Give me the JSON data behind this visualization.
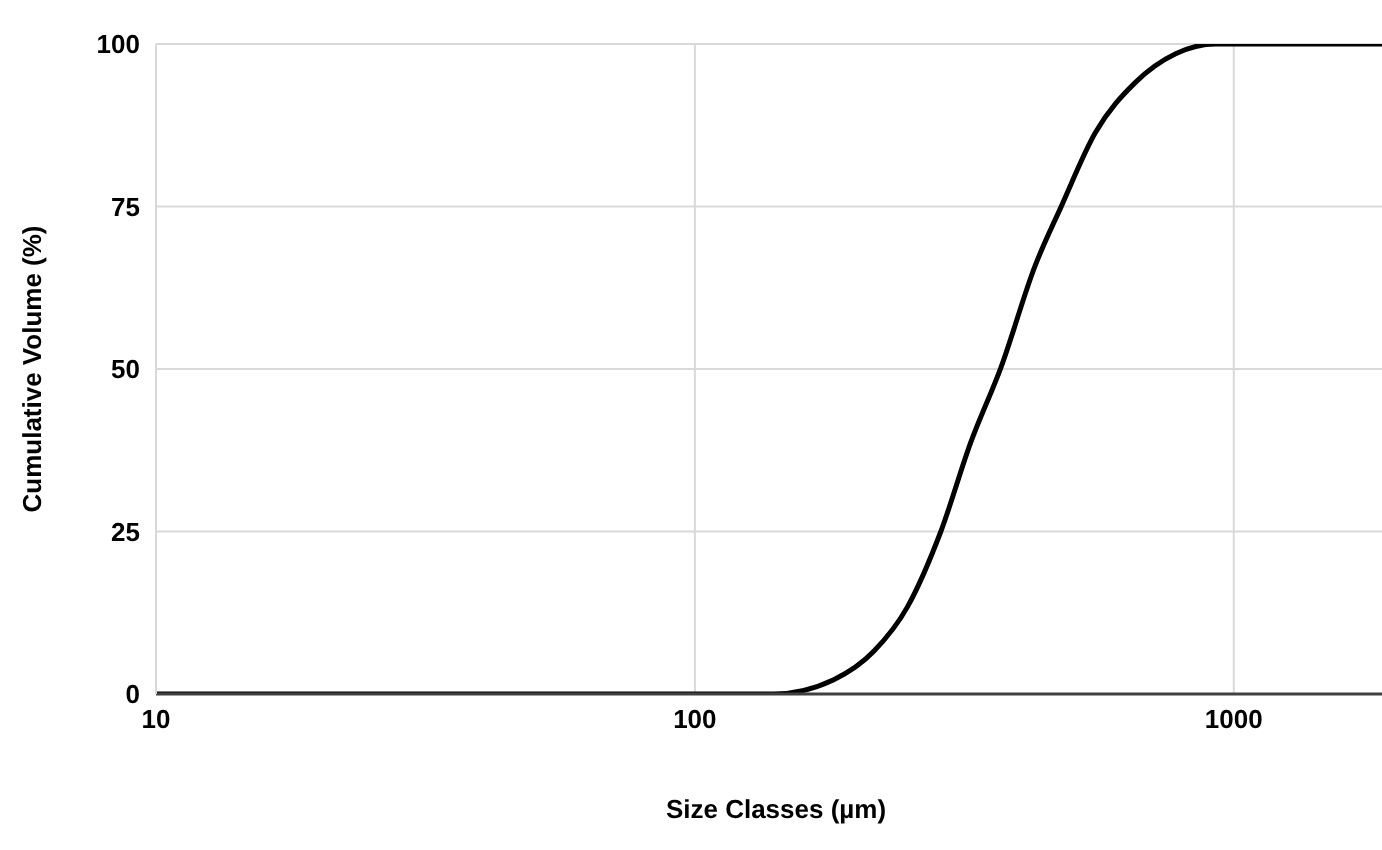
{
  "chart_data": {
    "type": "line",
    "xlabel": "Size Classes (µm)",
    "ylabel": "Cumulative Volume (%)",
    "log": "x",
    "grid": true,
    "marker": "none",
    "line_style": "solid",
    "x": [
      10,
      140,
      181,
      215,
      248,
      286,
      325,
      370,
      428,
      479,
      553,
      657,
      780,
      925,
      2000
    ],
    "series": [
      {
        "color": "#000000",
        "values": [
          0,
          0,
          2.2,
          6.6,
          13.4,
          25,
          38.7,
          50.3,
          65.9,
          75.1,
          86.3,
          94.1,
          98.5,
          100,
          100
        ]
      }
    ],
    "xlim": [
      10,
      2000
    ],
    "xticks": [
      10,
      100,
      1000
    ],
    "ylim": [
      0,
      100
    ],
    "yticks": [
      0,
      25,
      50,
      75,
      100
    ]
  }
}
